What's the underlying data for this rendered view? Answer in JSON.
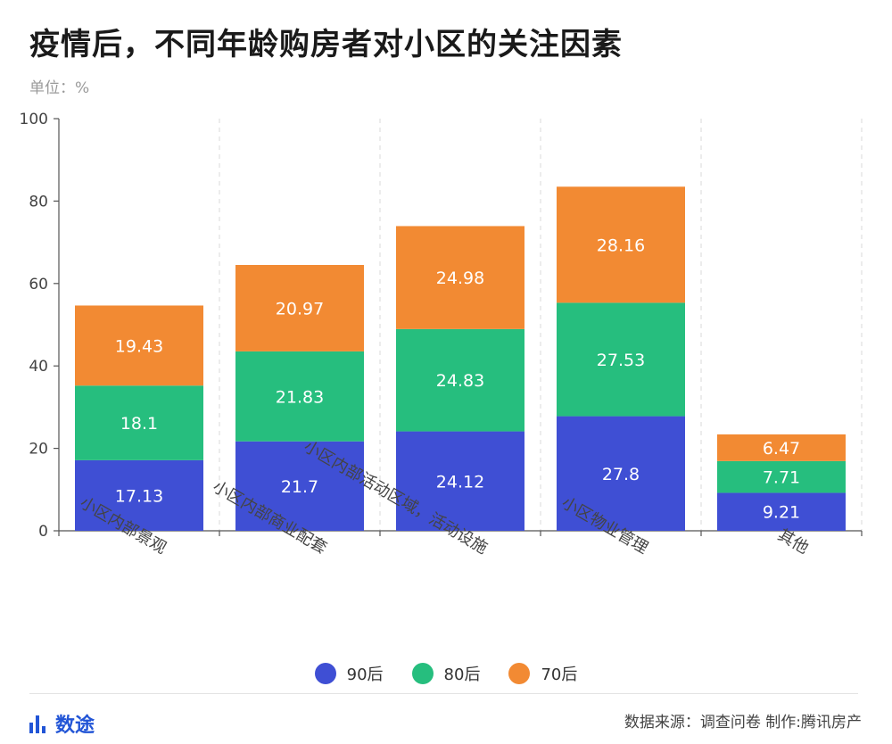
{
  "title": "疫情后，不同年龄购房者对小区的关注因素",
  "unit_label": "单位：%",
  "legend": [
    {
      "name": "90后",
      "color": "#3f4fd4"
    },
    {
      "name": "80后",
      "color": "#26be7e"
    },
    {
      "name": "70后",
      "color": "#f28a33"
    }
  ],
  "footer": {
    "brand": "数途",
    "source": "数据来源：调查问卷  制作:腾讯房产"
  },
  "chart_data": {
    "type": "bar",
    "stacked": true,
    "categories": [
      "小区内部景观",
      "小区内部商业配套",
      "小区内部活动区域，活动设施",
      "小区物业管理",
      "其他"
    ],
    "series": [
      {
        "name": "90后",
        "color": "#3f4fd4",
        "values": [
          17.13,
          21.7,
          24.12,
          27.8,
          9.21
        ]
      },
      {
        "name": "80后",
        "color": "#26be7e",
        "values": [
          18.1,
          21.83,
          24.83,
          27.53,
          7.71
        ]
      },
      {
        "name": "70后",
        "color": "#f28a33",
        "values": [
          19.43,
          20.97,
          24.98,
          28.16,
          6.47
        ]
      }
    ],
    "ylim": [
      0,
      100
    ],
    "yticks": [
      0,
      20,
      40,
      60,
      80,
      100
    ],
    "grid": "vertical-dashed",
    "legend_position": "bottom"
  }
}
